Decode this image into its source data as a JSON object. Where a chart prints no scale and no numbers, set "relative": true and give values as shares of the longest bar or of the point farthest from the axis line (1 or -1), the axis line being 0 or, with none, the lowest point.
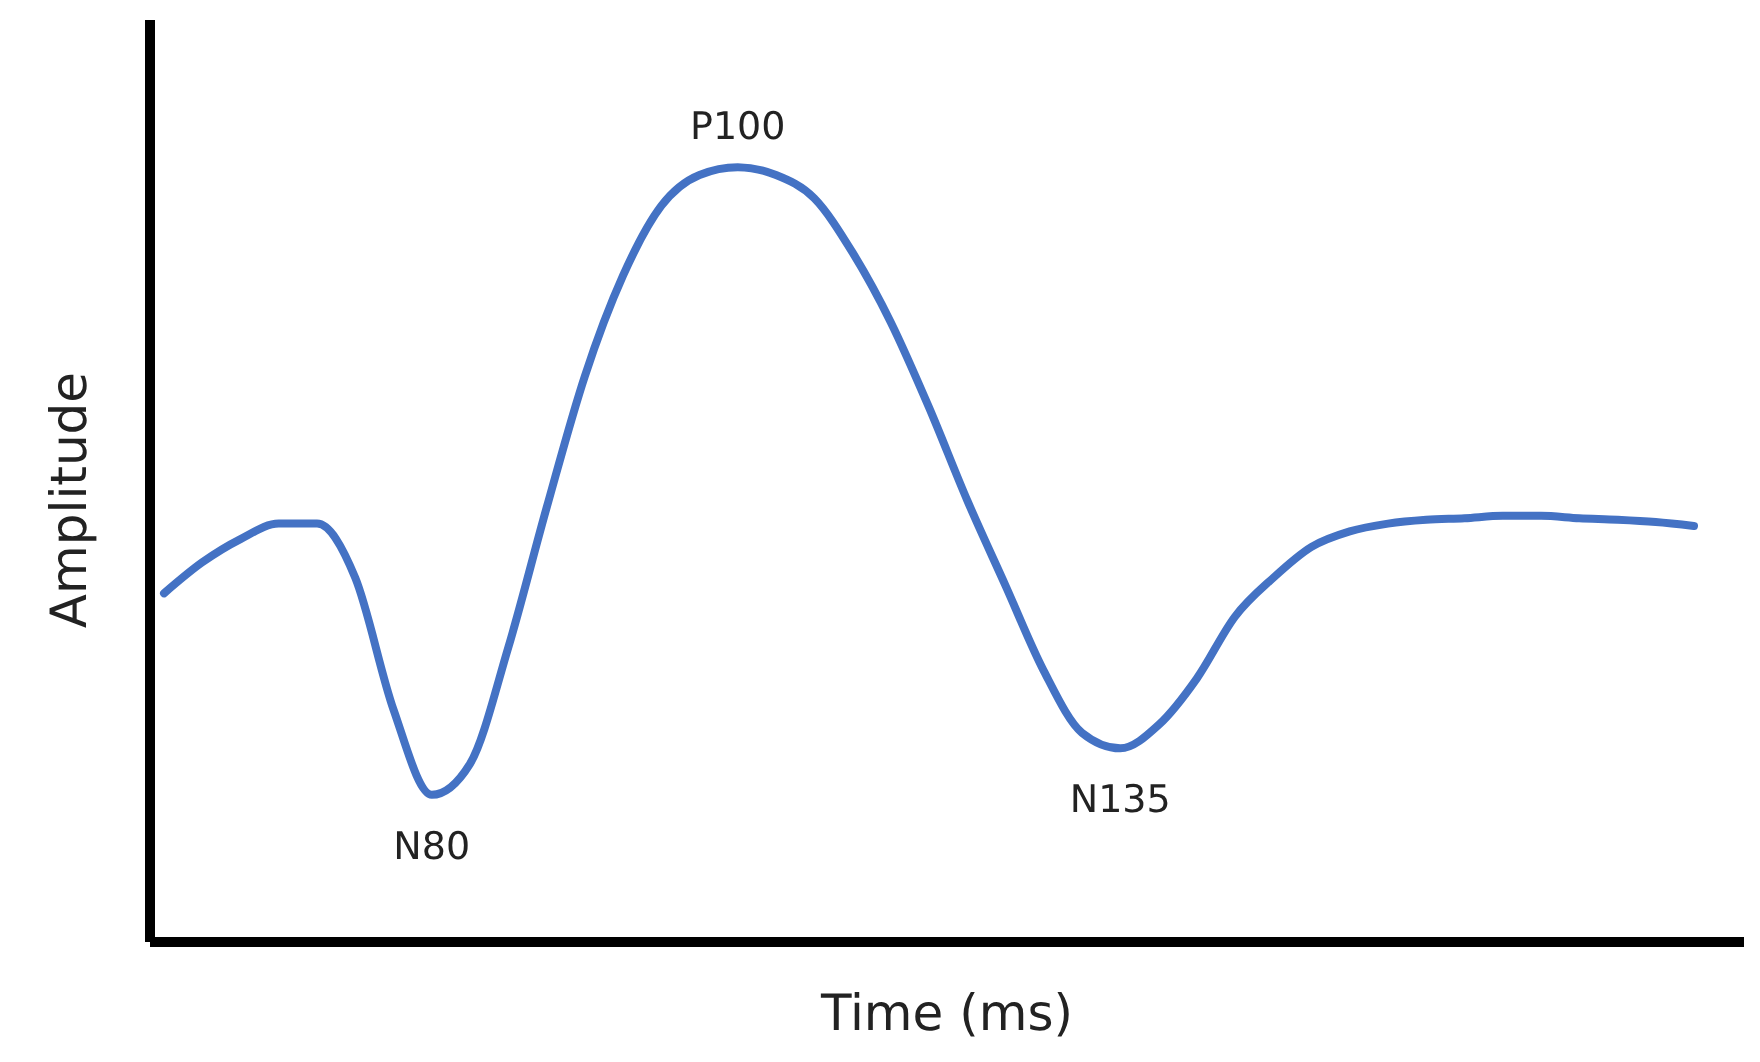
{
  "chart_data": {
    "type": "line",
    "relative": true,
    "xlabel": "Time (ms)",
    "ylabel": "Amplitude",
    "categories": [
      null,
      null,
      null,
      null,
      null,
      null,
      null,
      null,
      null,
      null,
      null,
      null,
      null,
      null,
      null,
      null,
      null,
      null,
      null,
      null,
      null,
      null,
      null,
      null,
      null,
      null,
      null,
      null,
      null,
      null,
      null,
      null,
      null,
      null,
      null,
      null,
      null,
      null,
      null,
      null,
      null
    ],
    "series": [
      {
        "color": "#4472c4",
        "values": [
          0.45,
          0.49,
          0.52,
          0.54,
          0.54,
          0.47,
          0.3,
          0.19,
          0.23,
          0.38,
          0.56,
          0.73,
          0.86,
          0.95,
          0.99,
          1,
          0.99,
          0.96,
          0.89,
          0.8,
          0.69,
          0.57,
          0.46,
          0.35,
          0.27,
          0.25,
          0.28,
          0.34,
          0.42,
          0.47,
          0.51,
          0.53,
          0.54,
          0.545,
          0.547,
          0.55,
          0.55,
          0.547,
          0.545,
          0.542,
          0.537
        ]
      }
    ],
    "annotations": [
      {
        "text": "N80",
        "y": 0.19
      },
      {
        "text": "P100",
        "y": 1
      },
      {
        "text": "N135",
        "y": 0.25
      }
    ],
    "marker": "none",
    "line_style": "solid"
  }
}
